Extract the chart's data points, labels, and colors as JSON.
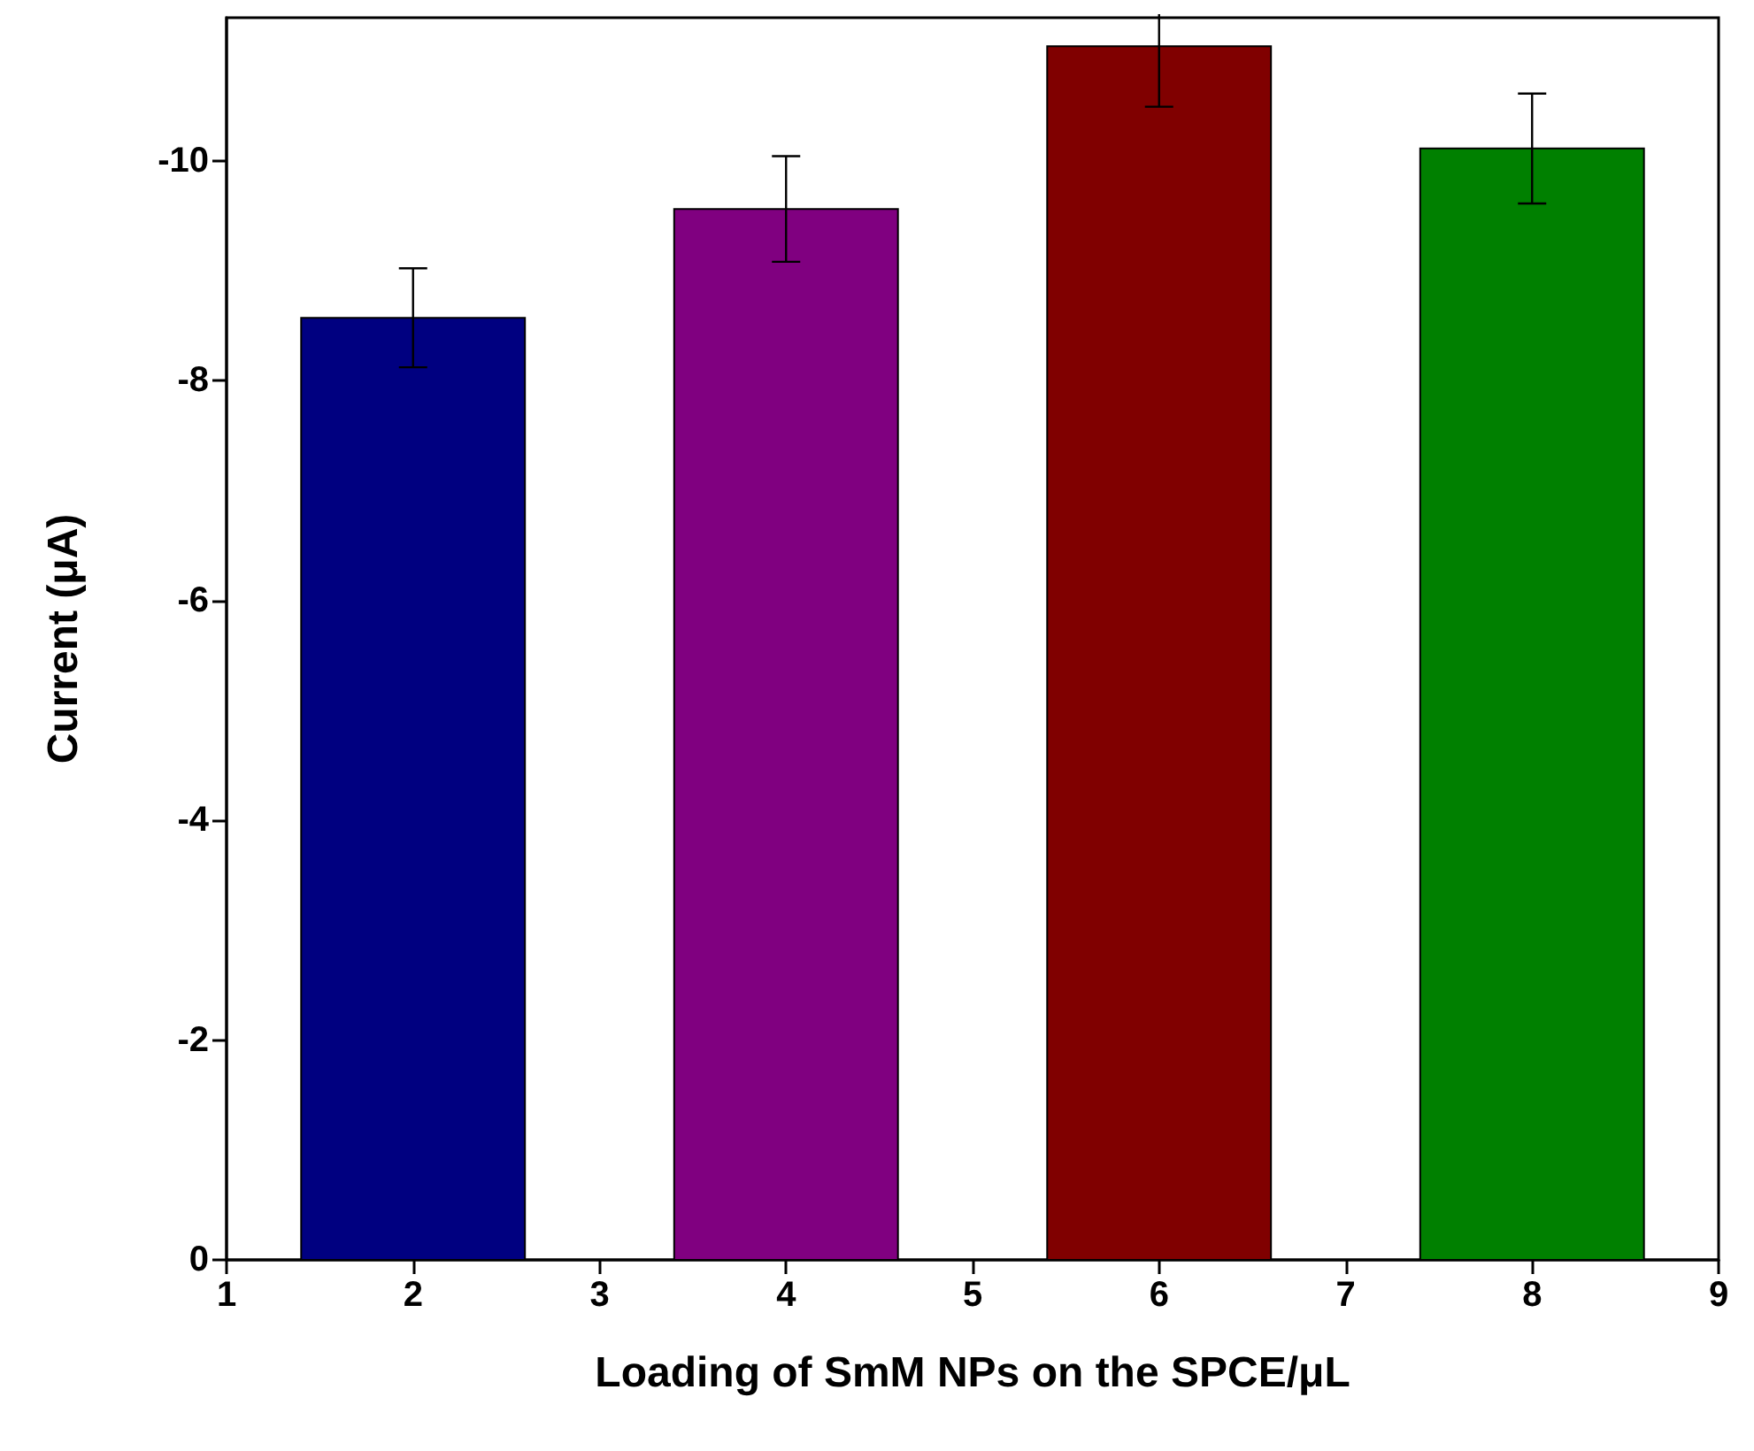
{
  "chart_data": {
    "type": "bar",
    "xlabel": "Loading of SmM NPs on the SPCE/μL",
    "ylabel": "Current (μA)",
    "x": [
      2,
      4,
      6,
      8
    ],
    "values": [
      -8.57,
      -9.56,
      -11.04,
      -10.11
    ],
    "colors": [
      "#000080",
      "#800080",
      "#800000",
      "#008000"
    ],
    "errors": [
      0.45,
      0.48,
      0.55,
      0.5
    ],
    "xlim": [
      1,
      9
    ],
    "xticks": [
      1,
      2,
      3,
      4,
      5,
      6,
      7,
      8,
      9
    ],
    "ylim": [
      0,
      -11.3
    ],
    "yticks": [
      0,
      -2,
      -4,
      -6,
      -8,
      -10
    ],
    "grid": false
  }
}
